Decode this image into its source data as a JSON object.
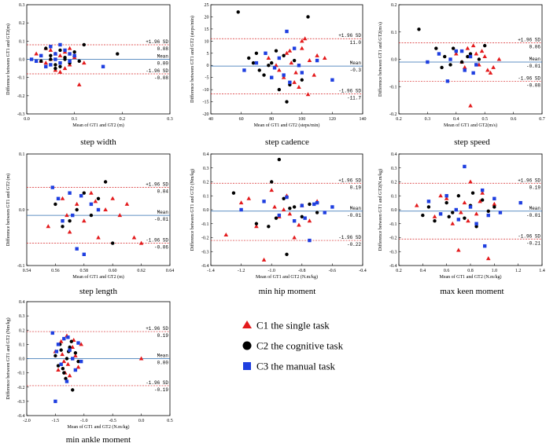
{
  "legend": [
    {
      "label": "C1 the single task",
      "marker": "triangle",
      "color": "#e31a1c"
    },
    {
      "label": "C2 the cognitive task",
      "marker": "circle",
      "color": "#000000"
    },
    {
      "label": "C3 the manual task",
      "marker": "square",
      "color": "#1f3fe0"
    }
  ],
  "colors": {
    "mean_line": "#2b6cb0",
    "sd_line": "#d62728"
  },
  "chart_data": [
    {
      "type": "scatter",
      "title": "step width",
      "xlabel": "Mean of GT1 and GT2 (m)",
      "ylabel": "Difference between GT1 and GT2(m)",
      "xlim": [
        0.0,
        0.3
      ],
      "ylim": [
        -0.3,
        0.3
      ],
      "xticks": [
        0.0,
        0.1,
        0.2,
        0.3
      ],
      "yticks": [
        -0.3,
        -0.2,
        -0.1,
        0.0,
        0.1,
        0.2,
        0.3
      ],
      "xtick_labels": [
        "0.0",
        "0.1",
        "0.2",
        "0.3"
      ],
      "ytick_labels": [
        "-0.3",
        "-0.2",
        "-0.1",
        "0.0",
        "0.1",
        "0.2",
        "0.3"
      ],
      "mean": 0.0,
      "upper": 0.08,
      "lower": -0.08,
      "mean_label": "0.00",
      "upper_label": "0.08",
      "lower_label": "-0.08",
      "series": [
        {
          "name": "C1 the single task",
          "x": [
            0.02,
            0.04,
            0.05,
            0.06,
            0.07,
            0.08,
            0.09,
            0.1,
            0.11,
            0.05,
            0.07,
            0.09,
            0.03,
            0.06,
            0.08,
            0.1,
            0.04,
            0.12
          ],
          "y": [
            0.03,
            -0.02,
            0.05,
            -0.06,
            0.02,
            0.04,
            -0.03,
            0.01,
            -0.14,
            0.0,
            -0.07,
            0.06,
            -0.01,
            0.03,
            -0.05,
            0.02,
            0.06,
            -0.02
          ]
        },
        {
          "name": "C2 the cognitive task",
          "x": [
            0.03,
            0.05,
            0.06,
            0.07,
            0.08,
            0.09,
            0.1,
            0.12,
            0.19,
            0.04,
            0.06,
            0.08,
            0.11,
            0.07,
            0.05
          ],
          "y": [
            -0.01,
            0.02,
            -0.03,
            0.05,
            0.01,
            -0.02,
            0.04,
            0.08,
            0.03,
            0.06,
            -0.05,
            0.0,
            -0.01,
            -0.04,
            0.0
          ]
        },
        {
          "name": "C3 the manual task",
          "x": [
            0.01,
            0.03,
            0.04,
            0.05,
            0.06,
            0.07,
            0.08,
            0.09,
            0.1,
            0.16,
            0.02,
            0.05,
            0.07,
            0.09,
            0.06
          ],
          "y": [
            0.0,
            0.02,
            -0.04,
            0.07,
            0.03,
            -0.02,
            0.05,
            -0.01,
            0.02,
            -0.04,
            -0.01,
            -0.03,
            0.08,
            0.03,
            0.0
          ]
        }
      ]
    },
    {
      "type": "scatter",
      "title": "step cadence",
      "xlabel": "Mean of GT1 and GT2 (steps/min)",
      "ylabel": "Difference between GT1 and GT2 (steps/min)",
      "xlim": [
        40,
        140
      ],
      "ylim": [
        -20,
        25
      ],
      "xticks": [
        40,
        60,
        80,
        100,
        120,
        140
      ],
      "yticks": [
        -20,
        -15,
        -10,
        -5,
        0,
        5,
        10,
        15,
        20,
        25
      ],
      "xtick_labels": [
        "40",
        "60",
        "80",
        "100",
        "120",
        "140"
      ],
      "ytick_labels": [
        "-20",
        "-15",
        "-10",
        "-5",
        "0",
        "5",
        "10",
        "15",
        "20",
        "25"
      ],
      "mean": -0.3,
      "upper": 11.0,
      "lower": -11.7,
      "mean_label": "-0.3",
      "upper_label": "11.0",
      "lower_label": "-11.7",
      "series": [
        {
          "name": "C1 the single task",
          "x": [
            78,
            85,
            90,
            95,
            100,
            102,
            105,
            108,
            110,
            88,
            93,
            98,
            83,
            100,
            115,
            96,
            104,
            92
          ],
          "y": [
            3,
            -2,
            5,
            -7,
            10,
            11,
            2,
            -4,
            4,
            -5,
            1,
            -9,
            0,
            7,
            3,
            -3,
            -12,
            6
          ]
        },
        {
          "name": "C2 the cognitive task",
          "x": [
            58,
            65,
            70,
            75,
            80,
            85,
            90,
            95,
            100,
            104,
            72,
            88,
            78,
            92,
            83,
            68
          ],
          "y": [
            22,
            3,
            5,
            -4,
            1,
            -10,
            -15,
            2,
            -6,
            20,
            -2,
            4,
            0,
            -8,
            6,
            1
          ]
        },
        {
          "name": "C3 the manual task",
          "x": [
            62,
            70,
            80,
            85,
            90,
            95,
            100,
            110,
            120,
            76,
            88,
            98,
            82,
            92
          ],
          "y": [
            -2,
            1,
            -5,
            3,
            14,
            7,
            -3,
            2,
            -6,
            5,
            -4,
            0,
            -1,
            -7
          ]
        }
      ]
    },
    {
      "type": "scatter",
      "title": "step speed",
      "xlabel": "Mean of GT1 and GT2(m/s)",
      "ylabel": "Difference between GT1 and GT2(m/s)",
      "xlim": [
        0.2,
        0.7
      ],
      "ylim": [
        -0.2,
        0.2
      ],
      "xticks": [
        0.2,
        0.3,
        0.4,
        0.5,
        0.6,
        0.7
      ],
      "yticks": [
        -0.2,
        -0.1,
        0.0,
        0.1,
        0.2
      ],
      "xtick_labels": [
        "0.2",
        "0.3",
        "0.4",
        "0.5",
        "0.6",
        "0.7"
      ],
      "ytick_labels": [
        "-0.2",
        "-0.1",
        "0.0",
        "0.1",
        "0.2"
      ],
      "mean": -0.01,
      "upper": 0.06,
      "lower": -0.08,
      "mean_label": "-0.01",
      "upper_label": "0.06",
      "lower_label": "-0.08",
      "series": [
        {
          "name": "C1 the single task",
          "x": [
            0.4,
            0.43,
            0.46,
            0.48,
            0.5,
            0.52,
            0.55,
            0.45,
            0.49,
            0.42,
            0.51,
            0.47,
            0.44,
            0.53
          ],
          "y": [
            0.02,
            -0.03,
            0.05,
            -0.02,
            0.01,
            -0.05,
            0.0,
            -0.17,
            0.03,
            -0.01,
            -0.04,
            0.02,
            0.04,
            -0.03
          ]
        },
        {
          "name": "C2 the cognitive task",
          "x": [
            0.27,
            0.33,
            0.36,
            0.38,
            0.4,
            0.42,
            0.45,
            0.48,
            0.5,
            0.35,
            0.44,
            0.39
          ],
          "y": [
            0.11,
            0.04,
            0.01,
            -0.02,
            0.03,
            -0.01,
            0.02,
            0.0,
            0.05,
            -0.03,
            0.01,
            0.04
          ]
        },
        {
          "name": "C3 the manual task",
          "x": [
            0.3,
            0.34,
            0.37,
            0.4,
            0.43,
            0.45,
            0.47,
            0.38,
            0.42,
            0.46
          ],
          "y": [
            -0.01,
            0.02,
            -0.08,
            0.03,
            -0.04,
            0.01,
            -0.02,
            0.0,
            0.03,
            -0.05
          ]
        }
      ]
    },
    {
      "type": "scatter",
      "title": "step length",
      "xlabel": "Mean of GT1 and GT2 (m)",
      "ylabel": "Difference between GT1 and GT2 (m)",
      "xlim": [
        0.54,
        0.64
      ],
      "ylim": [
        -0.1,
        0.1
      ],
      "xticks": [
        0.54,
        0.56,
        0.58,
        0.6,
        0.62,
        0.64
      ],
      "yticks": [
        -0.1,
        0.0,
        0.1
      ],
      "xtick_labels": [
        "0.54",
        "0.56",
        "0.58",
        "0.60",
        "0.62",
        "0.64"
      ],
      "ytick_labels": [
        "-0.1",
        "0.0",
        "0.1"
      ],
      "mean": -0.01,
      "upper": 0.04,
      "lower": -0.06,
      "mean_label": "-0.01",
      "upper_label": "0.04",
      "lower_label": "-0.06",
      "series": [
        {
          "name": "C1 the single task",
          "x": [
            0.555,
            0.565,
            0.57,
            0.575,
            0.58,
            0.585,
            0.59,
            0.595,
            0.6,
            0.605,
            0.61,
            0.615,
            0.62,
            0.568,
            0.588
          ],
          "y": [
            -0.03,
            0.02,
            -0.04,
            0.01,
            -0.02,
            0.03,
            -0.05,
            0.0,
            0.02,
            -0.01,
            0.01,
            -0.05,
            -0.06,
            -0.01,
            0.015
          ]
        },
        {
          "name": "C2 the cognitive task",
          "x": [
            0.56,
            0.57,
            0.58,
            0.585,
            0.59,
            0.595,
            0.6,
            0.575,
            0.565
          ],
          "y": [
            0.01,
            -0.02,
            0.03,
            -0.01,
            0.02,
            0.05,
            -0.06,
            0.0,
            -0.03
          ]
        },
        {
          "name": "C3 the manual task",
          "x": [
            0.558,
            0.562,
            0.57,
            0.575,
            0.58,
            0.585,
            0.59,
            0.572,
            0.578,
            0.565
          ],
          "y": [
            0.04,
            0.02,
            0.03,
            -0.07,
            -0.08,
            0.01,
            0.0,
            -0.01,
            0.025,
            -0.02
          ]
        }
      ]
    },
    {
      "type": "scatter",
      "title": "min hip moment",
      "xlabel": "Mean of GT1 and GT2 (N.m/kg)",
      "ylabel": "Difference between GT1 and GT2 (Nm/kg)",
      "xlim": [
        -1.4,
        -0.4
      ],
      "ylim": [
        -0.4,
        0.4
      ],
      "xticks": [
        -1.4,
        -1.2,
        -1.0,
        -0.8,
        -0.6,
        -0.4
      ],
      "yticks": [
        -0.4,
        -0.3,
        -0.2,
        -0.1,
        0.0,
        0.1,
        0.2,
        0.3,
        0.4
      ],
      "xtick_labels": [
        "-1.4",
        "-1.2",
        "-1.0",
        "-0.8",
        "-0.6",
        "-0.4"
      ],
      "ytick_labels": [
        "-0.4",
        "-0.3",
        "-0.2",
        "-0.1",
        "0.0",
        "0.1",
        "0.2",
        "0.3",
        "0.4"
      ],
      "mean": -0.01,
      "upper": 0.19,
      "lower": -0.22,
      "mean_label": "-0.01",
      "upper_label": "0.19",
      "lower_label": "-0.22",
      "series": [
        {
          "name": "C1 the single task",
          "x": [
            -1.3,
            -1.2,
            -1.1,
            -1.0,
            -0.95,
            -0.9,
            -0.85,
            -0.8,
            -0.75,
            -0.7,
            -1.05,
            -0.92,
            -0.88,
            -1.15,
            -0.82,
            -0.98
          ],
          "y": [
            -0.18,
            0.05,
            -0.12,
            0.14,
            -0.05,
            0.1,
            -0.2,
            0.03,
            -0.08,
            0.06,
            -0.36,
            0.0,
            -0.03,
            0.08,
            -0.11,
            0.02
          ]
        },
        {
          "name": "C2 the cognitive task",
          "x": [
            -1.25,
            -1.1,
            -1.0,
            -0.95,
            -0.9,
            -0.85,
            -0.8,
            -0.75,
            -0.7,
            -0.92,
            -1.02,
            -0.88,
            -0.97
          ],
          "y": [
            0.12,
            -0.1,
            0.2,
            0.36,
            -0.32,
            0.02,
            -0.05,
            0.04,
            -0.02,
            0.08,
            -0.12,
            0.01,
            -0.06
          ]
        },
        {
          "name": "C3 the manual task",
          "x": [
            -1.2,
            -1.05,
            -0.95,
            -0.9,
            -0.85,
            -0.8,
            -0.75,
            -0.7,
            -0.65,
            -0.6,
            -0.78,
            -0.72
          ],
          "y": [
            0.0,
            0.06,
            -0.04,
            0.09,
            -0.08,
            0.03,
            -0.22,
            0.05,
            -0.02,
            0.02,
            -0.06,
            0.04
          ]
        }
      ]
    },
    {
      "type": "scatter",
      "title": "max keen moment",
      "xlabel": "Mean of GT1 and GT2 (N.m/kg)",
      "ylabel": "Difference between GT1 and GT2(N.m/kg)",
      "xlim": [
        0.2,
        1.4
      ],
      "ylim": [
        -0.4,
        0.4
      ],
      "xticks": [
        0.2,
        0.4,
        0.6,
        0.8,
        1.0,
        1.2,
        1.4
      ],
      "yticks": [
        -0.4,
        -0.3,
        -0.2,
        -0.1,
        0.0,
        0.1,
        0.2,
        0.3,
        0.4
      ],
      "xtick_labels": [
        "0.2",
        "0.4",
        "0.6",
        "0.8",
        "1.0",
        "1.2",
        "1.4"
      ],
      "ytick_labels": [
        "-0.4",
        "-0.3",
        "-0.2",
        "-0.1",
        "0.0",
        "0.1",
        "0.2",
        "0.3",
        "0.4"
      ],
      "mean": -0.01,
      "upper": 0.19,
      "lower": -0.21,
      "mean_label": "-0.01",
      "upper_label": "0.19",
      "lower_label": "-0.21",
      "series": [
        {
          "name": "C1 the single task",
          "x": [
            0.35,
            0.5,
            0.6,
            0.65,
            0.7,
            0.75,
            0.8,
            0.85,
            0.9,
            0.95,
            1.0,
            0.72,
            0.88,
            0.55,
            0.78
          ],
          "y": [
            0.03,
            -0.05,
            0.08,
            -0.1,
            -0.29,
            0.05,
            0.2,
            -0.03,
            0.12,
            -0.35,
            0.04,
            -0.02,
            0.06,
            0.1,
            -0.08
          ]
        },
        {
          "name": "C2 the cognitive task",
          "x": [
            0.4,
            0.45,
            0.5,
            0.6,
            0.65,
            0.7,
            0.75,
            0.8,
            0.85,
            0.9,
            0.95,
            1.0,
            0.62,
            0.82
          ],
          "y": [
            -0.04,
            0.02,
            -0.08,
            0.05,
            -0.02,
            0.1,
            -0.06,
            0.03,
            -0.12,
            0.07,
            -0.01,
            0.02,
            -0.05,
            0.12
          ]
        },
        {
          "name": "C3 the manual task",
          "x": [
            0.45,
            0.55,
            0.6,
            0.7,
            0.75,
            0.8,
            0.85,
            0.9,
            0.95,
            1.0,
            1.05,
            1.22,
            0.68,
            0.92
          ],
          "y": [
            0.06,
            -0.03,
            0.1,
            -0.07,
            0.31,
            0.02,
            -0.1,
            0.14,
            -0.04,
            0.08,
            -0.02,
            0.05,
            0.0,
            -0.26
          ]
        }
      ]
    },
    {
      "type": "scatter",
      "title": "min ankle moment",
      "xlabel": "Mean of GT1 and GT2 (N.m/kg)",
      "ylabel": "Difference between GT1 and GT2 (Nm/kg)",
      "xlim": [
        -2.0,
        0.5
      ],
      "ylim": [
        -0.4,
        0.4
      ],
      "xticks": [
        -2.0,
        -1.5,
        -1.0,
        -0.5,
        0.0,
        0.5
      ],
      "yticks": [
        -0.4,
        -0.3,
        -0.2,
        -0.1,
        0.0,
        0.1,
        0.2,
        0.3,
        0.4
      ],
      "xtick_labels": [
        "-2.0",
        "-1.5",
        "-1.0",
        "-0.5",
        "0.0",
        "0.5"
      ],
      "ytick_labels": [
        "-0.4",
        "-0.3",
        "-0.2",
        "-0.1",
        "0.0",
        "0.1",
        "0.2",
        "0.3",
        "0.4"
      ],
      "mean": 0.0,
      "upper": 0.19,
      "lower": -0.19,
      "mean_label": "0.00",
      "upper_label": "0.19",
      "lower_label": "-0.19",
      "series": [
        {
          "name": "C1 the single task",
          "x": [
            -1.5,
            -1.45,
            -1.4,
            -1.35,
            -1.3,
            -1.25,
            -1.2,
            -1.15,
            -1.1,
            -1.05,
            -1.38,
            -1.28,
            -1.18,
            -1.33,
            0.0
          ],
          "y": [
            0.05,
            -0.08,
            0.12,
            -0.02,
            0.16,
            -0.12,
            0.08,
            0.02,
            -0.06,
            0.1,
            0.03,
            -0.04,
            0.13,
            -0.1,
            0.0
          ]
        },
        {
          "name": "C2 the cognitive task",
          "x": [
            -1.5,
            -1.45,
            -1.4,
            -1.35,
            -1.3,
            -1.25,
            -1.2,
            -1.15,
            -1.1,
            -1.42,
            -1.32,
            -1.22,
            -1.27,
            -1.37
          ],
          "y": [
            0.02,
            -0.05,
            0.06,
            -0.1,
            0.0,
            0.08,
            -0.22,
            0.04,
            -0.02,
            0.1,
            -0.14,
            0.12,
            0.05,
            -0.07
          ]
        },
        {
          "name": "C3 the manual task",
          "x": [
            -1.55,
            -1.5,
            -1.45,
            -1.4,
            -1.35,
            -1.3,
            -1.25,
            -1.2,
            -1.15,
            -1.1,
            -1.05,
            -1.48,
            -1.28
          ],
          "y": [
            0.18,
            -0.3,
            0.1,
            -0.04,
            0.14,
            -0.16,
            0.06,
            0.0,
            -0.08,
            0.11,
            -0.02,
            0.05,
            0.15
          ]
        }
      ]
    }
  ]
}
